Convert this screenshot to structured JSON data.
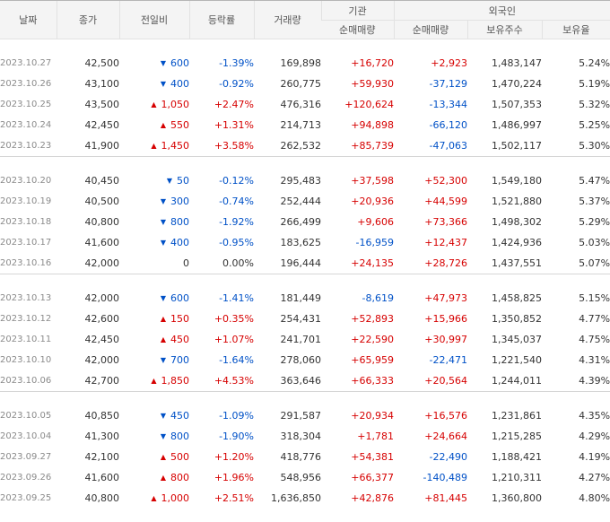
{
  "headers": {
    "date": "날짜",
    "close": "종가",
    "change": "전일비",
    "rate": "등락률",
    "volume": "거래량",
    "institution": "기관",
    "institution_net": "순매매량",
    "foreign": "외국인",
    "foreign_net": "순매매량",
    "foreign_holdings": "보유주수",
    "foreign_ratio": "보유율"
  },
  "arrow_icons": {
    "up": "▲",
    "down": "▼"
  },
  "colors": {
    "up": "#d60000",
    "down": "#0051c7",
    "flat": "#333333"
  },
  "groups": [
    {
      "rows": [
        {
          "date": "2023.10.27",
          "close": "42,500",
          "dir": "down",
          "change": "600",
          "rate": "-1.39%",
          "volume": "169,898",
          "inst": "+16,720",
          "foreign_net": "+2,923",
          "holdings": "1,483,147",
          "ratio": "5.24%"
        },
        {
          "date": "2023.10.26",
          "close": "43,100",
          "dir": "down",
          "change": "400",
          "rate": "-0.92%",
          "volume": "260,775",
          "inst": "+59,930",
          "foreign_net": "-37,129",
          "holdings": "1,470,224",
          "ratio": "5.19%"
        },
        {
          "date": "2023.10.25",
          "close": "43,500",
          "dir": "up",
          "change": "1,050",
          "rate": "+2.47%",
          "volume": "476,316",
          "inst": "+120,624",
          "foreign_net": "-13,344",
          "holdings": "1,507,353",
          "ratio": "5.32%"
        },
        {
          "date": "2023.10.24",
          "close": "42,450",
          "dir": "up",
          "change": "550",
          "rate": "+1.31%",
          "volume": "214,713",
          "inst": "+94,898",
          "foreign_net": "-66,120",
          "holdings": "1,486,997",
          "ratio": "5.25%"
        },
        {
          "date": "2023.10.23",
          "close": "41,900",
          "dir": "up",
          "change": "1,450",
          "rate": "+3.58%",
          "volume": "262,532",
          "inst": "+85,739",
          "foreign_net": "-47,063",
          "holdings": "1,502,117",
          "ratio": "5.30%"
        }
      ]
    },
    {
      "rows": [
        {
          "date": "2023.10.20",
          "close": "40,450",
          "dir": "down",
          "change": "50",
          "rate": "-0.12%",
          "volume": "295,483",
          "inst": "+37,598",
          "foreign_net": "+52,300",
          "holdings": "1,549,180",
          "ratio": "5.47%"
        },
        {
          "date": "2023.10.19",
          "close": "40,500",
          "dir": "down",
          "change": "300",
          "rate": "-0.74%",
          "volume": "252,444",
          "inst": "+20,936",
          "foreign_net": "+44,599",
          "holdings": "1,521,880",
          "ratio": "5.37%"
        },
        {
          "date": "2023.10.18",
          "close": "40,800",
          "dir": "down",
          "change": "800",
          "rate": "-1.92%",
          "volume": "266,499",
          "inst": "+9,606",
          "foreign_net": "+73,366",
          "holdings": "1,498,302",
          "ratio": "5.29%"
        },
        {
          "date": "2023.10.17",
          "close": "41,600",
          "dir": "down",
          "change": "400",
          "rate": "-0.95%",
          "volume": "183,625",
          "inst": "-16,959",
          "foreign_net": "+12,437",
          "holdings": "1,424,936",
          "ratio": "5.03%"
        },
        {
          "date": "2023.10.16",
          "close": "42,000",
          "dir": "flat",
          "change": "0",
          "rate": "0.00%",
          "volume": "196,444",
          "inst": "+24,135",
          "foreign_net": "+28,726",
          "holdings": "1,437,551",
          "ratio": "5.07%"
        }
      ]
    },
    {
      "rows": [
        {
          "date": "2023.10.13",
          "close": "42,000",
          "dir": "down",
          "change": "600",
          "rate": "-1.41%",
          "volume": "181,449",
          "inst": "-8,619",
          "foreign_net": "+47,973",
          "holdings": "1,458,825",
          "ratio": "5.15%"
        },
        {
          "date": "2023.10.12",
          "close": "42,600",
          "dir": "up",
          "change": "150",
          "rate": "+0.35%",
          "volume": "254,431",
          "inst": "+52,893",
          "foreign_net": "+15,966",
          "holdings": "1,350,852",
          "ratio": "4.77%"
        },
        {
          "date": "2023.10.11",
          "close": "42,450",
          "dir": "up",
          "change": "450",
          "rate": "+1.07%",
          "volume": "241,701",
          "inst": "+22,590",
          "foreign_net": "+30,997",
          "holdings": "1,345,037",
          "ratio": "4.75%"
        },
        {
          "date": "2023.10.10",
          "close": "42,000",
          "dir": "down",
          "change": "700",
          "rate": "-1.64%",
          "volume": "278,060",
          "inst": "+65,959",
          "foreign_net": "-22,471",
          "holdings": "1,221,540",
          "ratio": "4.31%"
        },
        {
          "date": "2023.10.06",
          "close": "42,700",
          "dir": "up",
          "change": "1,850",
          "rate": "+4.53%",
          "volume": "363,646",
          "inst": "+66,333",
          "foreign_net": "+20,564",
          "holdings": "1,244,011",
          "ratio": "4.39%"
        }
      ]
    },
    {
      "rows": [
        {
          "date": "2023.10.05",
          "close": "40,850",
          "dir": "down",
          "change": "450",
          "rate": "-1.09%",
          "volume": "291,587",
          "inst": "+20,934",
          "foreign_net": "+16,576",
          "holdings": "1,231,861",
          "ratio": "4.35%"
        },
        {
          "date": "2023.10.04",
          "close": "41,300",
          "dir": "down",
          "change": "800",
          "rate": "-1.90%",
          "volume": "318,304",
          "inst": "+1,781",
          "foreign_net": "+24,664",
          "holdings": "1,215,285",
          "ratio": "4.29%"
        },
        {
          "date": "2023.09.27",
          "close": "42,100",
          "dir": "up",
          "change": "500",
          "rate": "+1.20%",
          "volume": "418,776",
          "inst": "+54,381",
          "foreign_net": "-22,490",
          "holdings": "1,188,421",
          "ratio": "4.19%"
        },
        {
          "date": "2023.09.26",
          "close": "41,600",
          "dir": "up",
          "change": "800",
          "rate": "+1.96%",
          "volume": "548,956",
          "inst": "+66,377",
          "foreign_net": "-140,489",
          "holdings": "1,210,311",
          "ratio": "4.27%"
        },
        {
          "date": "2023.09.25",
          "close": "40,800",
          "dir": "up",
          "change": "1,000",
          "rate": "+2.51%",
          "volume": "1,636,850",
          "inst": "+42,876",
          "foreign_net": "+81,445",
          "holdings": "1,360,800",
          "ratio": "4.80%"
        }
      ]
    }
  ]
}
